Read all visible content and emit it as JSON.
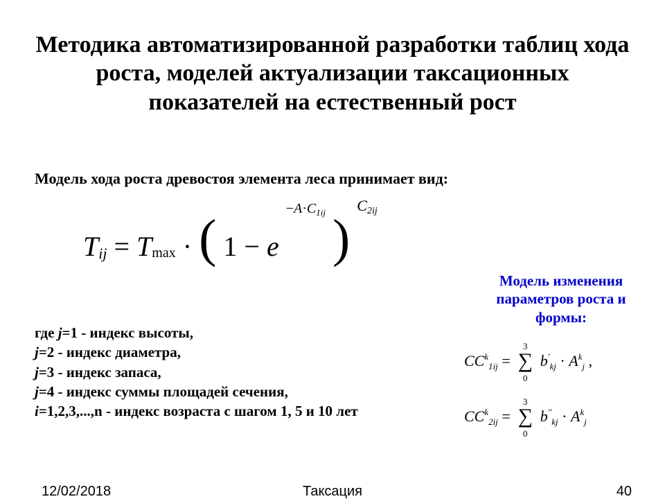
{
  "title": "Методика автоматизированной разработки таблиц хода роста, моделей актуализации таксационных показателей на естественный рост",
  "subtitle": "Модель хода роста древостоя элемента леса принимает вид:",
  "main_equation": {
    "lhs_T": "T",
    "lhs_sub": "ij",
    "eq": " = ",
    "rhs_T": "T",
    "rhs_sub": "max",
    "dot": " · ",
    "lparen": "(",
    "one_minus": "1 − ",
    "e": "e",
    "exp_minus": "−",
    "exp_A": "A",
    "exp_dot": "·",
    "exp_C": "C",
    "exp_C_sub": "1ij",
    "rparen": ")",
    "outer_C": "C",
    "outer_C_sub": "2ij"
  },
  "blue_label": "Модель изменения параметров роста и формы:",
  "where": {
    "l1a": "где ",
    "l1j": "j",
    "l1b": "=1 - индекс высоты,",
    "l2j": "j",
    "l2b": "=2 - индекс диаметра,",
    "l3j": "j",
    "l3b": "=3 - индекс запаса,",
    "l4j": "j",
    "l4b": "=4 - индекс суммы площадей сечения,",
    "l5i": "i",
    "l5b": "=1,2,3,...,n - индекс возраста с шагом 1, 5 и 10 лет"
  },
  "cc1": {
    "CC": "CC",
    "sub": "1ij",
    "sup": "k",
    "eq": " = ",
    "sum_top": "3",
    "sum_bot": "0",
    "b": "b",
    "b_sub": "kj",
    "b_sup": "ʹ",
    "dot": " · ",
    "A": "A",
    "A_sub": "j",
    "A_sup": "k",
    "tail": ","
  },
  "cc2": {
    "CC": "CC",
    "sub": "2ij",
    "sup": "k",
    "eq": " = ",
    "sum_top": "3",
    "sum_bot": "0",
    "b": "b",
    "b_sub": "kj",
    "b_sup": "ʺ",
    "dot": " · ",
    "A": "A",
    "A_sub": "j",
    "A_sup": "k"
  },
  "footer": {
    "date": "12/02/2018",
    "center": "Таксация",
    "num": "40"
  },
  "colors": {
    "text": "#000000",
    "blue": "#0000cc",
    "bg": "#ffffff"
  }
}
